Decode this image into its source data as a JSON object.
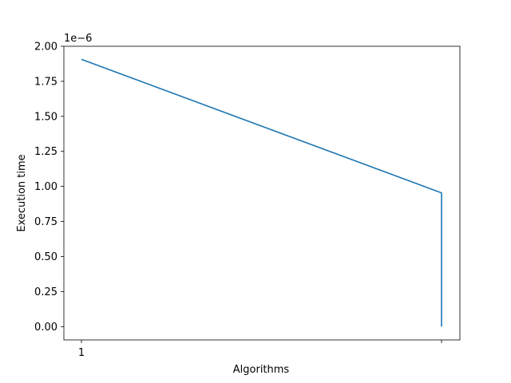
{
  "chart_data": {
    "type": "line",
    "xlabel": "Algorithms",
    "ylabel": "Execution time",
    "y_offset_label": "1e−6",
    "x_categories": [
      "1",
      ""
    ],
    "x": [
      "1",
      "",
      ""
    ],
    "series": [
      {
        "values": [
          1.907e-06,
          9.54e-07,
          0
        ],
        "color": "#1f77b4"
      }
    ],
    "ylim": [
      -9.5e-08,
      2e-06
    ],
    "y_ticks": [
      0,
      2.5e-07,
      5e-07,
      7.5e-07,
      1e-06,
      1.25e-06,
      1.5e-06,
      1.75e-06,
      2e-06
    ],
    "y_tick_labels": [
      "0.00",
      "0.25",
      "0.50",
      "0.75",
      "1.00",
      "1.25",
      "1.50",
      "1.75",
      "2.00"
    ],
    "grid": false,
    "legend": "none"
  }
}
